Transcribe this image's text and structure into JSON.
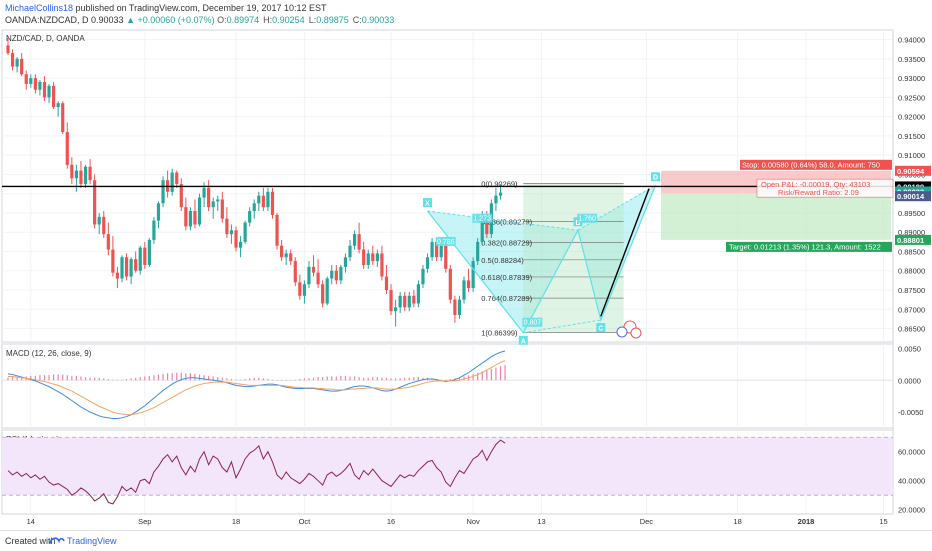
{
  "header": {
    "author": "MichaelCollins18",
    "published": " published on TradingView.com, December 19, 2017 10:12 EST",
    "symbol": "OANDA:NZDCAD, D",
    "last": "0.90033",
    "change": "▲ +0.00060 (+0.07%)",
    "o_label": "O:",
    "o": "0.89974",
    "h_label": "H:",
    "h": "0.90254",
    "l_label": "L:",
    "l": "0.89875",
    "c_label": "C:",
    "c": "0.90033"
  },
  "footer": {
    "created_with": "Created with",
    "brand": "TradingView"
  },
  "colors": {
    "up": "#26a69a",
    "down": "#ef5350",
    "harmonic": "#5ee1e8",
    "macd": "#3d8ee0",
    "signal": "#f4a460",
    "rsi": "#8b2252",
    "stop_zone": "#f8b4b4",
    "target_zone": "#b8e6b8",
    "stop_label": "#ef5350",
    "target_label": "#26a65b"
  },
  "chart_data": {
    "type": "candlestick",
    "title": "NZD/CAD, D, OANDA",
    "price_axis": {
      "range": [
        0.8615,
        0.9425
      ],
      "ticks": [
        "0.94000",
        "0.93500",
        "0.93000",
        "0.92500",
        "0.92000",
        "0.91500",
        "0.91000",
        "0.90500",
        "0.90000",
        "0.89500",
        "0.89000",
        "0.88500",
        "0.88000",
        "0.87500",
        "0.87000",
        "0.86500"
      ],
      "tick_values": [
        0.94,
        0.935,
        0.93,
        0.925,
        0.92,
        0.915,
        0.91,
        0.905,
        0.9,
        0.895,
        0.89,
        0.885,
        0.88,
        0.875,
        0.87,
        0.865
      ]
    },
    "time_axis": {
      "ticks": [
        "14",
        "Sep",
        "18",
        "Oct",
        "16",
        "Nov",
        "13",
        "Dec",
        "18",
        "2018",
        "15",
        "Feb",
        "15"
      ],
      "tick_bar_index": [
        5,
        30,
        50,
        65,
        84,
        102,
        117,
        140,
        160,
        175,
        192,
        210,
        228
      ]
    },
    "ohlc": [
      [
        0.9385,
        0.9405,
        0.936,
        0.9365
      ],
      [
        0.9365,
        0.9375,
        0.932,
        0.933
      ],
      [
        0.933,
        0.9355,
        0.9315,
        0.935
      ],
      [
        0.935,
        0.9365,
        0.9305,
        0.931
      ],
      [
        0.931,
        0.932,
        0.927,
        0.9285
      ],
      [
        0.9285,
        0.931,
        0.9275,
        0.93
      ],
      [
        0.93,
        0.931,
        0.926,
        0.927
      ],
      [
        0.927,
        0.9295,
        0.9255,
        0.929
      ],
      [
        0.929,
        0.9305,
        0.924,
        0.925
      ],
      [
        0.925,
        0.9285,
        0.9235,
        0.928
      ],
      [
        0.928,
        0.929,
        0.922,
        0.9225
      ],
      [
        0.9225,
        0.924,
        0.92,
        0.9235
      ],
      [
        0.9235,
        0.924,
        0.9155,
        0.916
      ],
      [
        0.916,
        0.9185,
        0.9065,
        0.9075
      ],
      [
        0.9075,
        0.9095,
        0.9025,
        0.904
      ],
      [
        0.904,
        0.9075,
        0.9005,
        0.906
      ],
      [
        0.906,
        0.9085,
        0.9015,
        0.9025
      ],
      [
        0.9025,
        0.9075,
        0.9015,
        0.907
      ],
      [
        0.907,
        0.909,
        0.9025,
        0.9035
      ],
      [
        0.9035,
        0.905,
        0.891,
        0.892
      ],
      [
        0.892,
        0.895,
        0.8895,
        0.894
      ],
      [
        0.894,
        0.8955,
        0.8885,
        0.8895
      ],
      [
        0.8895,
        0.8925,
        0.884,
        0.8855
      ],
      [
        0.8855,
        0.889,
        0.8785,
        0.8795
      ],
      [
        0.8795,
        0.881,
        0.8755,
        0.878
      ],
      [
        0.878,
        0.884,
        0.877,
        0.8835
      ],
      [
        0.8835,
        0.8845,
        0.8775,
        0.8785
      ],
      [
        0.8785,
        0.8835,
        0.8765,
        0.883
      ],
      [
        0.883,
        0.885,
        0.8795,
        0.88
      ],
      [
        0.88,
        0.8865,
        0.879,
        0.886
      ],
      [
        0.886,
        0.8875,
        0.8805,
        0.8815
      ],
      [
        0.8815,
        0.8885,
        0.881,
        0.888
      ],
      [
        0.888,
        0.894,
        0.887,
        0.893
      ],
      [
        0.893,
        0.898,
        0.891,
        0.8975
      ],
      [
        0.8975,
        0.9045,
        0.8965,
        0.9035
      ],
      [
        0.9035,
        0.906,
        0.899,
        0.9005
      ],
      [
        0.9005,
        0.9065,
        0.8995,
        0.9055
      ],
      [
        0.9055,
        0.906,
        0.9015,
        0.9025
      ],
      [
        0.9025,
        0.904,
        0.8955,
        0.8965
      ],
      [
        0.8965,
        0.899,
        0.8905,
        0.8915
      ],
      [
        0.8915,
        0.8965,
        0.8905,
        0.8955
      ],
      [
        0.8955,
        0.8985,
        0.891,
        0.892
      ],
      [
        0.892,
        0.9,
        0.8915,
        0.899
      ],
      [
        0.899,
        0.903,
        0.8965,
        0.9015
      ],
      [
        0.9015,
        0.9035,
        0.8955,
        0.8965
      ],
      [
        0.8965,
        0.899,
        0.8935,
        0.898
      ],
      [
        0.898,
        0.8995,
        0.8955,
        0.8985
      ],
      [
        0.8985,
        0.9005,
        0.8925,
        0.8935
      ],
      [
        0.8935,
        0.8965,
        0.8885,
        0.8895
      ],
      [
        0.8895,
        0.892,
        0.887,
        0.8905
      ],
      [
        0.8905,
        0.8915,
        0.885,
        0.886
      ],
      [
        0.886,
        0.889,
        0.8835,
        0.8875
      ],
      [
        0.8875,
        0.893,
        0.887,
        0.8925
      ],
      [
        0.8925,
        0.8965,
        0.8915,
        0.8955
      ],
      [
        0.8955,
        0.8985,
        0.8935,
        0.8975
      ],
      [
        0.8975,
        0.9005,
        0.8955,
        0.8995
      ],
      [
        0.8995,
        0.9015,
        0.8955,
        0.8965
      ],
      [
        0.8965,
        0.9015,
        0.8955,
        0.9005
      ],
      [
        0.9005,
        0.9015,
        0.8935,
        0.8945
      ],
      [
        0.8945,
        0.895,
        0.8855,
        0.8865
      ],
      [
        0.8865,
        0.888,
        0.8825,
        0.8835
      ],
      [
        0.8835,
        0.8855,
        0.8815,
        0.8845
      ],
      [
        0.8845,
        0.8855,
        0.8815,
        0.8825
      ],
      [
        0.8825,
        0.8835,
        0.876,
        0.877
      ],
      [
        0.877,
        0.879,
        0.8725,
        0.8735
      ],
      [
        0.8735,
        0.8775,
        0.8715,
        0.8765
      ],
      [
        0.8765,
        0.8825,
        0.8755,
        0.881
      ],
      [
        0.881,
        0.884,
        0.8785,
        0.8795
      ],
      [
        0.8795,
        0.883,
        0.8755,
        0.8765
      ],
      [
        0.8765,
        0.8775,
        0.8705,
        0.8715
      ],
      [
        0.8715,
        0.8785,
        0.871,
        0.878
      ],
      [
        0.878,
        0.8815,
        0.8765,
        0.88
      ],
      [
        0.88,
        0.8815,
        0.8765,
        0.8775
      ],
      [
        0.8775,
        0.8815,
        0.8765,
        0.881
      ],
      [
        0.881,
        0.8845,
        0.8795,
        0.8835
      ],
      [
        0.8835,
        0.888,
        0.8825,
        0.8865
      ],
      [
        0.8865,
        0.8905,
        0.8855,
        0.8895
      ],
      [
        0.8895,
        0.8925,
        0.8845,
        0.8855
      ],
      [
        0.8855,
        0.8875,
        0.8805,
        0.8815
      ],
      [
        0.8815,
        0.8855,
        0.8805,
        0.8845
      ],
      [
        0.8845,
        0.8865,
        0.8815,
        0.8825
      ],
      [
        0.8825,
        0.8855,
        0.881,
        0.8845
      ],
      [
        0.8845,
        0.8865,
        0.8775,
        0.8785
      ],
      [
        0.8785,
        0.8815,
        0.874,
        0.875
      ],
      [
        0.875,
        0.8765,
        0.8685,
        0.8695
      ],
      [
        0.8695,
        0.8725,
        0.8655,
        0.8705
      ],
      [
        0.8705,
        0.8745,
        0.869,
        0.8735
      ],
      [
        0.8735,
        0.8745,
        0.8695,
        0.8705
      ],
      [
        0.8705,
        0.8745,
        0.8695,
        0.8735
      ],
      [
        0.8735,
        0.875,
        0.8705,
        0.8715
      ],
      [
        0.8715,
        0.8775,
        0.8705,
        0.8765
      ],
      [
        0.8765,
        0.8815,
        0.8755,
        0.8805
      ],
      [
        0.8805,
        0.8845,
        0.8795,
        0.8835
      ],
      [
        0.8835,
        0.8885,
        0.8825,
        0.8875
      ],
      [
        0.8875,
        0.8885,
        0.8825,
        0.8835
      ],
      [
        0.8835,
        0.8875,
        0.8825,
        0.8865
      ],
      [
        0.8865,
        0.8875,
        0.8795,
        0.8805
      ],
      [
        0.8805,
        0.8815,
        0.8715,
        0.8725
      ],
      [
        0.8725,
        0.8735,
        0.8665,
        0.8685
      ],
      [
        0.8685,
        0.8735,
        0.8675,
        0.8725
      ],
      [
        0.8725,
        0.8785,
        0.8715,
        0.8775
      ],
      [
        0.8775,
        0.8805,
        0.8745,
        0.8755
      ],
      [
        0.8755,
        0.8835,
        0.8745,
        0.8825
      ],
      [
        0.8825,
        0.8885,
        0.8815,
        0.8875
      ],
      [
        0.8875,
        0.8955,
        0.8865,
        0.8945
      ],
      [
        0.8945,
        0.8955,
        0.8885,
        0.8895
      ],
      [
        0.8895,
        0.8985,
        0.8885,
        0.8975
      ],
      [
        0.8975,
        0.9015,
        0.8955,
        0.8995
      ],
      [
        0.8995,
        0.9025,
        0.8985,
        0.9003
      ]
    ],
    "harmonic_points": [
      {
        "label": "X",
        "bar": 92,
        "price": 0.8955
      },
      {
        "label": "A",
        "bar": 113,
        "price": 0.8639
      },
      {
        "label": "B",
        "bar": 125,
        "price": 0.8905
      },
      {
        "label": "C",
        "bar": 130,
        "price": 0.8672
      },
      {
        "label": "D",
        "bar": 142,
        "price": 0.9022
      }
    ],
    "fib_levels": [
      {
        "label": "0(0.90269)",
        "value": 0.90269
      },
      {
        "label": "0.236(0.89279)",
        "value": 0.89279
      },
      {
        "label": "0.382(0.88729)",
        "value": 0.88729
      },
      {
        "label": "0.5(0.88284)",
        "value": 0.88284
      },
      {
        "label": "0.618(0.87839)",
        "value": 0.87839
      },
      {
        "label": "0.764(0.87289)",
        "value": 0.87289
      },
      {
        "label": "1(0.86399)",
        "value": 0.86399
      }
    ],
    "ratios": [
      "1.273",
      "0.786",
      "1.760",
      "0.807"
    ],
    "price_labels": {
      "stop": "0.90594",
      "last": "0.90189",
      "current": "0.90033",
      "entry": "0.90014",
      "target": "0.88801"
    },
    "stop_value": 0.90594,
    "entry_value": 0.90014,
    "target_value": 0.88801,
    "position": {
      "stop_text": "Stop: 0.00580 (0.64%) 58.0, Amount: 750",
      "pnl_text": "Open P&L: -0.00019, Qty: 43103",
      "rr_text": "Risk/Reward Ratio: 2.09",
      "target_text": "Target: 0.01213 (1.35%) 121.3, Amount: 1522"
    },
    "macd": {
      "label": "MACD (12, 26, close, 9)",
      "range": [
        -0.0075,
        0.0057
      ],
      "ticks": [
        "0.0050",
        "0.0000",
        "-0.0050"
      ],
      "tick_values": [
        0.005,
        0.0,
        -0.005
      ],
      "histogram": [
        0.0004,
        0.0005,
        0.0005,
        0.0006,
        0.0006,
        0.0007,
        0.0007,
        0.0008,
        0.0008,
        0.0008,
        0.0009,
        0.0009,
        0.0009,
        0.0008,
        0.0007,
        0.0007,
        0.0006,
        0.0005,
        0.0004,
        0.0004,
        0.0004,
        0.0003,
        0.0002,
        0.0001,
        0.0001,
        0.0001,
        0.0002,
        0.0003,
        0.0004,
        0.0005,
        0.0006,
        0.0007,
        0.0008,
        0.0009,
        0.001,
        0.0011,
        0.0011,
        0.0012,
        0.0012,
        0.0011,
        0.0011,
        0.001,
        0.0009,
        0.0008,
        0.0007,
        0.0006,
        0.0005,
        0.0004,
        0.0003,
        0.0002,
        0.0001,
        0.0001,
        0.0002,
        0.0003,
        0.0004,
        0.0004,
        0.0003,
        0.0002,
        0.0001,
        0.0,
        -0.0001,
        -0.0001,
        0.0,
        0.0001,
        0.0002,
        0.0003,
        0.0003,
        0.0004,
        0.0005,
        0.0005,
        0.0006,
        0.0006,
        0.0006,
        0.0007,
        0.0007,
        0.0006,
        0.0006,
        0.0005,
        0.0004,
        0.0004,
        0.0005,
        0.0005,
        0.0004,
        0.0004,
        0.0003,
        0.0003,
        0.0003,
        0.0004,
        0.0004,
        0.0005,
        0.0005,
        0.0004,
        0.0004,
        0.0003,
        0.0002,
        0.0001,
        0.0001,
        0.0002,
        0.0003,
        0.0004,
        0.0006,
        0.0008,
        0.001,
        0.0012,
        0.0014,
        0.0016,
        0.0018,
        0.002,
        0.0022,
        0.0024
      ],
      "macd_line": [
        0.001,
        0.0009,
        0.0007,
        0.0005,
        0.0003,
        0.0001,
        -0.0001,
        -0.0004,
        -0.0007,
        -0.001,
        -0.0014,
        -0.0018,
        -0.0022,
        -0.0027,
        -0.0032,
        -0.0037,
        -0.0042,
        -0.0046,
        -0.005,
        -0.0053,
        -0.0056,
        -0.0058,
        -0.0059,
        -0.006,
        -0.006,
        -0.0059,
        -0.0057,
        -0.0054,
        -0.005,
        -0.0045,
        -0.004,
        -0.0034,
        -0.0028,
        -0.0022,
        -0.0016,
        -0.0011,
        -0.0006,
        -0.0002,
        0.0001,
        0.0003,
        0.0004,
        0.0004,
        0.0003,
        0.0002,
        0.0001,
        0.0,
        -0.0001,
        -0.0002,
        -0.0004,
        -0.0006,
        -0.0008,
        -0.0009,
        -0.001,
        -0.001,
        -0.0009,
        -0.0008,
        -0.0007,
        -0.0006,
        -0.0006,
        -0.0007,
        -0.0009,
        -0.0011,
        -0.0012,
        -0.0013,
        -0.0013,
        -0.0013,
        -0.0013,
        -0.0013,
        -0.0014,
        -0.0015,
        -0.0016,
        -0.0017,
        -0.0017,
        -0.0016,
        -0.0014,
        -0.0012,
        -0.001,
        -0.0009,
        -0.0009,
        -0.001,
        -0.0012,
        -0.0014,
        -0.0016,
        -0.0017,
        -0.0016,
        -0.0014,
        -0.0011,
        -0.0008,
        -0.0005,
        -0.0003,
        -0.0001,
        0.0001,
        0.0002,
        0.0002,
        0.0001,
        -0.0001,
        -0.0002,
        -0.0001,
        0.0001,
        0.0004,
        0.0008,
        0.0012,
        0.0017,
        0.0022,
        0.0027,
        0.0032,
        0.0037,
        0.0041,
        0.0044,
        0.0046
      ],
      "signal_line": [
        0.0006,
        0.0006,
        0.0005,
        0.0004,
        0.0003,
        0.0002,
        0.0001,
        -0.0001,
        -0.0002,
        -0.0004,
        -0.0006,
        -0.0008,
        -0.0011,
        -0.0014,
        -0.0017,
        -0.0021,
        -0.0025,
        -0.0029,
        -0.0033,
        -0.0037,
        -0.0041,
        -0.0044,
        -0.0047,
        -0.005,
        -0.0052,
        -0.0053,
        -0.0054,
        -0.0054,
        -0.0053,
        -0.0051,
        -0.0049,
        -0.0046,
        -0.0043,
        -0.0039,
        -0.0035,
        -0.0031,
        -0.0027,
        -0.0023,
        -0.0019,
        -0.0015,
        -0.0012,
        -0.0009,
        -0.0007,
        -0.0005,
        -0.0004,
        -0.0003,
        -0.0003,
        -0.0003,
        -0.0003,
        -0.0004,
        -0.0005,
        -0.0006,
        -0.0007,
        -0.0008,
        -0.0008,
        -0.0008,
        -0.0008,
        -0.0008,
        -0.0008,
        -0.0008,
        -0.0008,
        -0.0009,
        -0.001,
        -0.0011,
        -0.0011,
        -0.0012,
        -0.0012,
        -0.0012,
        -0.0013,
        -0.0013,
        -0.0014,
        -0.0014,
        -0.0015,
        -0.0015,
        -0.0015,
        -0.0014,
        -0.0014,
        -0.0013,
        -0.0013,
        -0.0012,
        -0.0012,
        -0.0012,
        -0.0013,
        -0.0014,
        -0.0014,
        -0.0014,
        -0.0013,
        -0.0012,
        -0.0011,
        -0.0009,
        -0.0007,
        -0.0005,
        -0.0003,
        -0.0002,
        -0.0001,
        -0.0001,
        -0.0001,
        -0.0001,
        -0.0001,
        0.0,
        0.0002,
        0.0004,
        0.0006,
        0.0009,
        0.0012,
        0.0016,
        0.002,
        0.0024,
        0.0028,
        0.0031
      ]
    },
    "rsi": {
      "label": "RSI (14, close)",
      "range": [
        17,
        75
      ],
      "ticks": [
        "60.0000",
        "40.0000",
        "20.0000"
      ],
      "tick_values": [
        60,
        40,
        20
      ],
      "band": [
        30,
        70
      ],
      "values": [
        47,
        44,
        46,
        43,
        45,
        42,
        44,
        41,
        43,
        39,
        37,
        38,
        36,
        34,
        30,
        32,
        35,
        33,
        30,
        26,
        28,
        31,
        25,
        24,
        29,
        36,
        33,
        35,
        32,
        40,
        41,
        38,
        46,
        50,
        55,
        58,
        53,
        57,
        49,
        44,
        50,
        46,
        55,
        60,
        51,
        57,
        55,
        49,
        46,
        53,
        42,
        48,
        55,
        59,
        61,
        64,
        55,
        60,
        53,
        44,
        41,
        46,
        42,
        40,
        38,
        41,
        45,
        43,
        40,
        37,
        44,
        46,
        43,
        45,
        48,
        52,
        44,
        41,
        47,
        44,
        48,
        44,
        40,
        38,
        36,
        40,
        44,
        42,
        44,
        43,
        47,
        50,
        53,
        54,
        49,
        46,
        39,
        36,
        42,
        47,
        45,
        50,
        55,
        57,
        61,
        54,
        60,
        65,
        68,
        66
      ]
    }
  }
}
